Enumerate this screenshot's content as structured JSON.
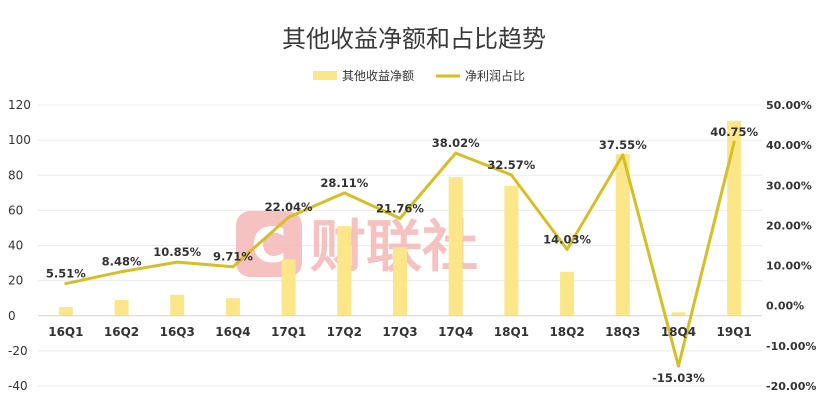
{
  "chart_data": {
    "type": "bar+line",
    "title": "其他收益净额和占比趋势",
    "categories": [
      "16Q1",
      "16Q2",
      "16Q3",
      "16Q4",
      "17Q1",
      "17Q2",
      "17Q3",
      "17Q4",
      "18Q1",
      "18Q2",
      "18Q3",
      "18Q4",
      "19Q1"
    ],
    "series": [
      {
        "name": "其他收益净额",
        "type": "bar",
        "axis": "left",
        "color": "#fbe68a",
        "values": [
          5,
          9,
          12,
          10,
          32,
          51,
          39,
          79,
          74,
          25,
          92,
          2,
          111
        ]
      },
      {
        "name": "净利润占比",
        "type": "line",
        "axis": "right",
        "color": "#d6be26",
        "values": [
          5.51,
          8.48,
          10.85,
          9.71,
          22.04,
          28.11,
          21.76,
          38.02,
          32.57,
          14.03,
          37.55,
          -15.03,
          40.75
        ],
        "labels": [
          "5.51%",
          "8.48%",
          "10.85%",
          "9.71%",
          "22.04%",
          "28.11%",
          "21.76%",
          "38.02%",
          "32.57%",
          "14.03%",
          "37.55%",
          "-15.03%",
          "40.75%"
        ]
      }
    ],
    "y_left": {
      "lim": [
        -40,
        120
      ],
      "ticks": [
        -40,
        -20,
        0,
        20,
        40,
        60,
        80,
        100,
        120
      ],
      "tick_labels": [
        "-40",
        "-20",
        "0",
        "20",
        "40",
        "60",
        "80",
        "100",
        "120"
      ]
    },
    "y_right": {
      "lim": [
        -20,
        50
      ],
      "ticks": [
        -20,
        -10,
        0,
        10,
        20,
        30,
        40,
        50
      ],
      "tick_labels": [
        "-20.00%",
        "-10.00%",
        "0.00%",
        "10.00%",
        "20.00%",
        "30.00%",
        "40.00%",
        "50.00%"
      ]
    },
    "grid": true,
    "legend_position": "top-center"
  },
  "watermark": {
    "text": "财联社",
    "color": "#f4b7b7",
    "logo_glyph": "C"
  }
}
